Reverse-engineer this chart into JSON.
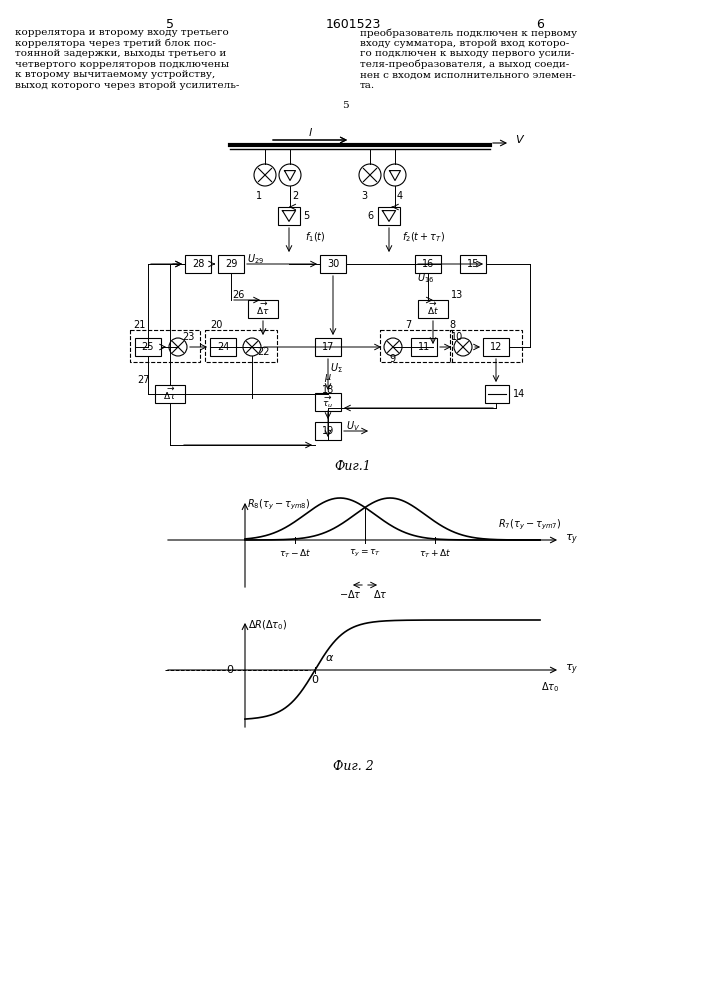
{
  "page_number_left": "5",
  "page_number_center": "1601523",
  "page_number_right": "6",
  "text_left": "коррелятора и второму входу третьего\nкоррелятора через третий блок пос-\nтоянной задержки, выходы третьего и\nчетвертого корреляторов подключены\nк второму вычитаемому устройству,\nвыход которого через второй усилитель-",
  "text_right": "преобразователь подключен к первому\nвходу сумматора, второй вход которо-\nго подключен к выходу первого усили-\nтеля-преобразователя, а выход соеди-\nнен с входом исполнительного элемен-\nта.",
  "text_center_num": "5",
  "fig1_label": "Фиг.1",
  "fig2_label": "Фиг. 2",
  "bg_color": "#ffffff",
  "line_color": "#000000",
  "font_size_text": 7.5,
  "font_size_label": 9
}
